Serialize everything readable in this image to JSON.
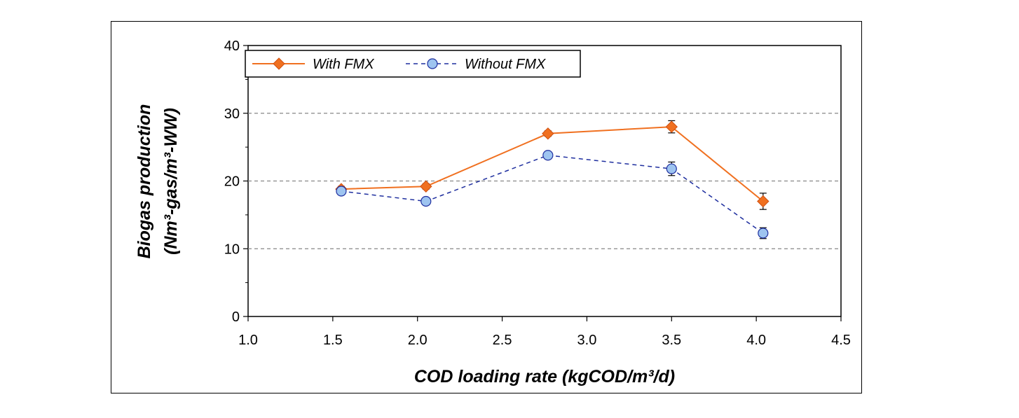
{
  "chart_data": {
    "type": "line",
    "xlabel": "COD loading rate (kgCOD/m³/d)",
    "ylabel_line1": "Biogas production",
    "ylabel_line2": "(Nm³-gas/m³-WW)",
    "xlim": [
      1.0,
      4.5
    ],
    "ylim": [
      0,
      40
    ],
    "x_ticks": [
      "1.0",
      "1.5",
      "2.0",
      "2.5",
      "3.0",
      "3.5",
      "4.0",
      "4.5"
    ],
    "y_ticks": [
      "0",
      "10",
      "20",
      "30",
      "40"
    ],
    "grid": "horizontal dashed at 10, 20, 30",
    "legend_position": "top-left",
    "series": [
      {
        "name": "With FMX",
        "color": "#f07020",
        "marker": "diamond",
        "line_style": "solid",
        "x": [
          1.55,
          2.05,
          2.77,
          3.5,
          4.04
        ],
        "y": [
          18.8,
          19.2,
          27.0,
          28.0,
          17.0
        ],
        "error": [
          0.4,
          0.4,
          0.4,
          0.9,
          1.2
        ]
      },
      {
        "name": "Without FMX",
        "color": "#1f2f9f",
        "marker_fill": "#9ec4f0",
        "marker": "circle",
        "line_style": "dashed",
        "x": [
          1.55,
          2.05,
          2.77,
          3.5,
          4.04
        ],
        "y": [
          18.5,
          17.0,
          23.8,
          21.8,
          12.3
        ],
        "error": [
          0.3,
          0.3,
          0.3,
          1.0,
          0.8
        ]
      }
    ]
  }
}
